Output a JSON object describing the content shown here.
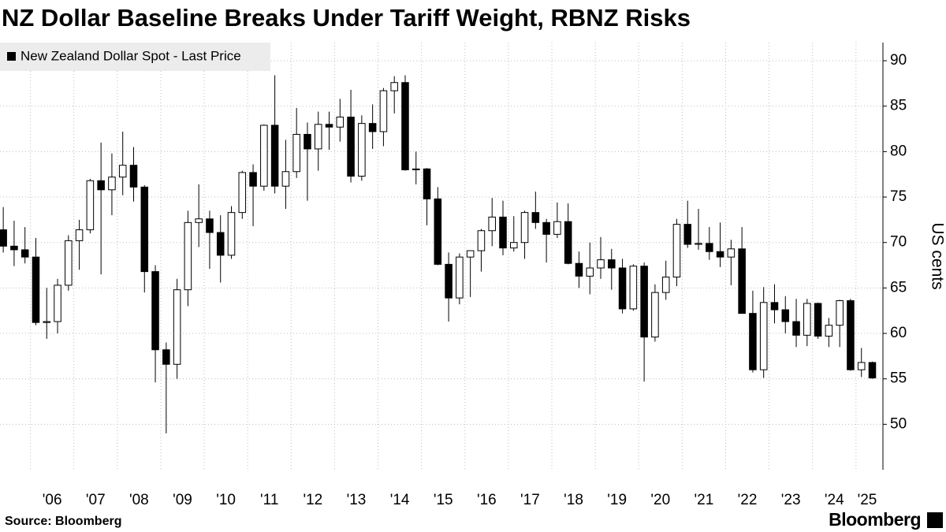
{
  "chart_data": {
    "type": "candlestick",
    "title": "NZ Dollar Baseline Breaks Under Tariff Weight, RBNZ Risks",
    "y_label": "US cents",
    "source": "Source: Bloomberg",
    "brand": "Bloomberg",
    "x": [
      2005.375,
      2005.625,
      2005.875,
      2006.125,
      2006.375,
      2006.625,
      2006.875,
      2007.125,
      2007.375,
      2007.625,
      2007.875,
      2008.125,
      2008.375,
      2008.625,
      2008.875,
      2009.125,
      2009.375,
      2009.625,
      2009.875,
      2010.125,
      2010.375,
      2010.625,
      2010.875,
      2011.125,
      2011.375,
      2011.625,
      2011.875,
      2012.125,
      2012.375,
      2012.625,
      2012.875,
      2013.125,
      2013.375,
      2013.625,
      2013.875,
      2014.125,
      2014.375,
      2014.625,
      2014.875,
      2015.125,
      2015.375,
      2015.625,
      2015.875,
      2016.125,
      2016.375,
      2016.625,
      2016.875,
      2017.125,
      2017.375,
      2017.625,
      2017.875,
      2018.125,
      2018.375,
      2018.625,
      2018.875,
      2019.125,
      2019.375,
      2019.625,
      2019.875,
      2020.125,
      2020.375,
      2020.625,
      2020.875,
      2021.125,
      2021.375,
      2021.625,
      2021.875,
      2022.125,
      2022.375,
      2022.625,
      2022.875,
      2023.125,
      2023.375,
      2023.625,
      2023.875,
      2024.125,
      2024.375,
      2024.625,
      2024.875,
      2025.125,
      2025.375
    ],
    "series": [
      {
        "name": "New Zealand Dollar Spot - Last Price",
        "color": "#000000",
        "open": [
          71.4,
          69.6,
          69.2,
          68.4,
          61.2,
          61.3,
          65.3,
          70.2,
          71.4,
          76.8,
          75.8,
          77.2,
          78.5,
          76.1,
          66.8,
          58.2,
          56.6,
          64.8,
          72.2,
          72.6,
          71.1,
          68.6,
          73.3,
          77.7,
          76.2,
          82.9,
          76.2,
          77.8,
          81.9,
          80.3,
          83.0,
          82.7,
          83.8,
          77.3,
          83.1,
          82.2,
          86.7,
          87.6,
          78.0,
          78.1,
          74.8,
          67.6,
          63.9,
          68.4,
          69.1,
          71.3,
          72.8,
          69.4,
          70.0,
          73.3,
          72.2,
          70.9,
          72.3,
          67.7,
          66.3,
          67.2,
          68.1,
          67.2,
          62.7,
          67.4,
          59.6,
          64.5,
          66.2,
          72.0,
          69.8,
          69.9,
          69.0,
          68.4,
          69.3,
          62.2,
          56.0,
          63.4,
          62.6,
          61.3,
          59.8,
          63.3,
          59.7,
          60.9,
          63.6,
          56.0,
          56.8
        ],
        "high": [
          73.9,
          72.4,
          71.7,
          70.5,
          65.0,
          66.0,
          70.8,
          72.5,
          77.0,
          81.0,
          79.8,
          82.2,
          80.5,
          76.3,
          67.5,
          59.0,
          66.0,
          73.5,
          76.4,
          73.5,
          73.0,
          74.0,
          77.9,
          78.6,
          83.0,
          88.4,
          81.3,
          84.8,
          83.2,
          84.4,
          84.4,
          85.8,
          86.8,
          84.0,
          85.2,
          87.0,
          88.3,
          88.4,
          80.0,
          78.2,
          76.1,
          68.9,
          68.8,
          69.1,
          71.5,
          74.9,
          74.6,
          72.9,
          73.5,
          75.6,
          72.6,
          74.4,
          74.3,
          69.0,
          70.0,
          70.6,
          69.3,
          68.2,
          67.6,
          67.8,
          65.4,
          68.0,
          72.6,
          74.6,
          73.7,
          71.7,
          72.2,
          70.3,
          71.7,
          64.7,
          65.1,
          65.4,
          64.1,
          63.8,
          63.8,
          63.4,
          61.7,
          63.7,
          63.8,
          58.4,
          56.9
        ],
        "low": [
          68.9,
          67.4,
          67.7,
          60.9,
          59.4,
          60.0,
          64.7,
          67.0,
          71.0,
          66.5,
          73.0,
          75.2,
          74.5,
          64.5,
          54.6,
          49.0,
          55.0,
          63.0,
          69.5,
          67.1,
          65.6,
          68.2,
          72.6,
          71.8,
          75.7,
          75.4,
          73.7,
          77.1,
          74.6,
          77.9,
          80.2,
          81.1,
          76.6,
          76.8,
          80.3,
          80.6,
          84.2,
          77.9,
          76.4,
          71.9,
          67.5,
          61.3,
          63.2,
          64.0,
          66.8,
          69.6,
          68.6,
          69.0,
          68.2,
          71.5,
          67.8,
          70.5,
          67.6,
          65.0,
          64.3,
          66.0,
          64.8,
          62.2,
          62.5,
          54.7,
          59.1,
          63.7,
          65.2,
          69.4,
          69.2,
          68.1,
          67.3,
          65.3,
          62.2,
          55.7,
          55.1,
          61.1,
          60.0,
          58.5,
          58.6,
          59.4,
          58.5,
          58.5,
          55.9,
          55.2,
          55.0
        ],
        "close": [
          69.6,
          69.2,
          68.4,
          61.2,
          61.3,
          65.3,
          70.2,
          71.4,
          76.8,
          75.8,
          77.2,
          78.5,
          76.1,
          66.8,
          58.2,
          56.6,
          64.8,
          72.2,
          72.6,
          71.1,
          68.6,
          73.3,
          77.7,
          76.2,
          82.9,
          76.2,
          77.8,
          81.9,
          80.3,
          83.0,
          82.7,
          83.8,
          77.3,
          83.1,
          82.2,
          86.7,
          87.6,
          78.0,
          78.1,
          74.8,
          67.6,
          63.9,
          68.4,
          69.1,
          71.3,
          72.8,
          69.4,
          70.0,
          73.3,
          72.2,
          70.9,
          72.3,
          67.7,
          66.3,
          67.2,
          68.1,
          67.2,
          62.7,
          67.4,
          59.6,
          64.5,
          66.2,
          72.0,
          69.8,
          69.9,
          69.0,
          68.4,
          69.3,
          62.2,
          56.0,
          63.4,
          62.6,
          61.3,
          59.8,
          63.3,
          59.7,
          60.9,
          63.6,
          56.0,
          56.8,
          55.1
        ]
      }
    ],
    "xlim": [
      2005.3,
      2025.62
    ],
    "xticks": [
      {
        "value": 2006,
        "label": "'06"
      },
      {
        "value": 2007,
        "label": "'07"
      },
      {
        "value": 2008,
        "label": "'08"
      },
      {
        "value": 2009,
        "label": "'09"
      },
      {
        "value": 2010,
        "label": "'10"
      },
      {
        "value": 2011,
        "label": "'11"
      },
      {
        "value": 2012,
        "label": "'12"
      },
      {
        "value": 2013,
        "label": "'13"
      },
      {
        "value": 2014,
        "label": "'14"
      },
      {
        "value": 2015,
        "label": "'15"
      },
      {
        "value": 2016,
        "label": "'16"
      },
      {
        "value": 2017,
        "label": "'17"
      },
      {
        "value": 2018,
        "label": "'18"
      },
      {
        "value": 2019,
        "label": "'19"
      },
      {
        "value": 2020,
        "label": "'20"
      },
      {
        "value": 2021,
        "label": "'21"
      },
      {
        "value": 2022,
        "label": "'22"
      },
      {
        "value": 2023,
        "label": "'23"
      },
      {
        "value": 2024,
        "label": "'24"
      },
      {
        "value": 2025,
        "label": "'25"
      }
    ],
    "ylim": [
      45,
      92
    ],
    "yticks": [
      50,
      55,
      60,
      65,
      70,
      75,
      80,
      85,
      90
    ],
    "grid": true
  }
}
